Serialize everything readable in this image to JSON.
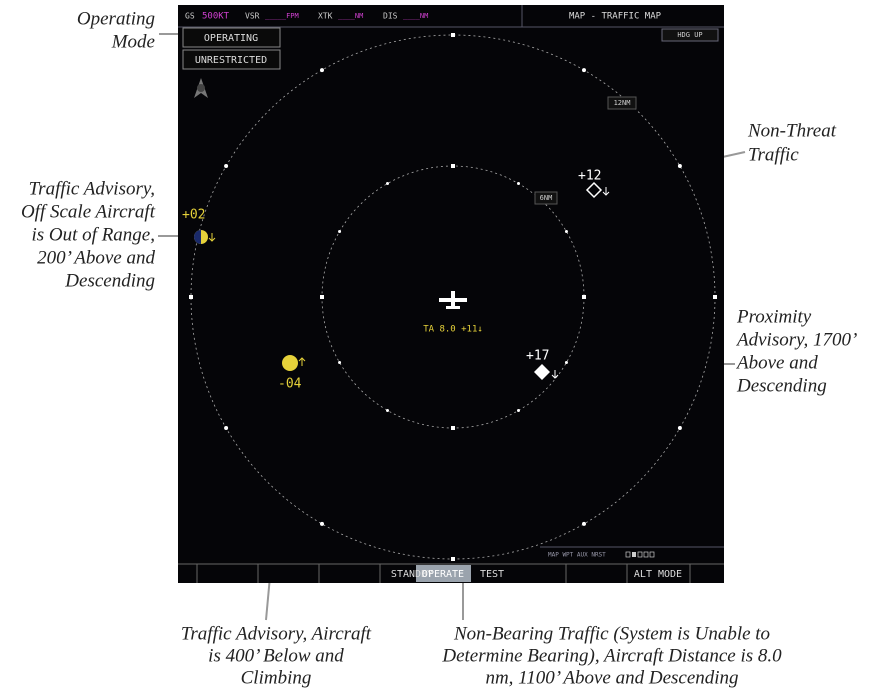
{
  "annotations": [
    {
      "lines": [
        "Operating",
        "Mode"
      ]
    },
    {
      "lines": [
        "Traffic Advisory,",
        "Off Scale Aircraft",
        "is Out of Range,",
        "200’ Above and",
        "Descending"
      ]
    },
    {
      "lines": [
        "Non-Threat",
        "Traffic"
      ]
    },
    {
      "lines": [
        "Proximity",
        "Advisory, 1700’",
        "Above and",
        "Descending"
      ]
    },
    {
      "lines": [
        "Traffic Advisory, Aircraft",
        "is 400’ Below and",
        "Climbing"
      ]
    },
    {
      "lines": [
        "Non-Bearing Traffic (System is Unable to",
        "Determine Bearing), Aircraft Distance is 8.0",
        "nm, 1100’ Above and Descending"
      ]
    }
  ],
  "screen": {
    "top_bar": {
      "gs_label": "GS",
      "gs_value": "500KT",
      "vsr_label": "VSR",
      "vsr_value": "_____FPM",
      "xtk_label": "XTK",
      "xtk_value": "____NM",
      "dis_label": "DIS",
      "dis_value": "____NM",
      "page_title": "MAP - TRAFFIC MAP"
    },
    "orientation": "HDG UP",
    "mode_boxes": [
      "OPERATING",
      "UNRESTRICTED"
    ],
    "range_labels": [
      "12NM",
      "6NM"
    ],
    "traffic": {
      "non_threat": "+12",
      "off_scale": "+02",
      "proximity": "+17",
      "below": "-04",
      "non_bearing": "TA 8.0 +11↓"
    },
    "page_groups": "MAP WPT AUX NRST",
    "softkeys": [
      "STANDBY",
      "OPERATE",
      "TEST",
      "ALT MODE"
    ]
  }
}
